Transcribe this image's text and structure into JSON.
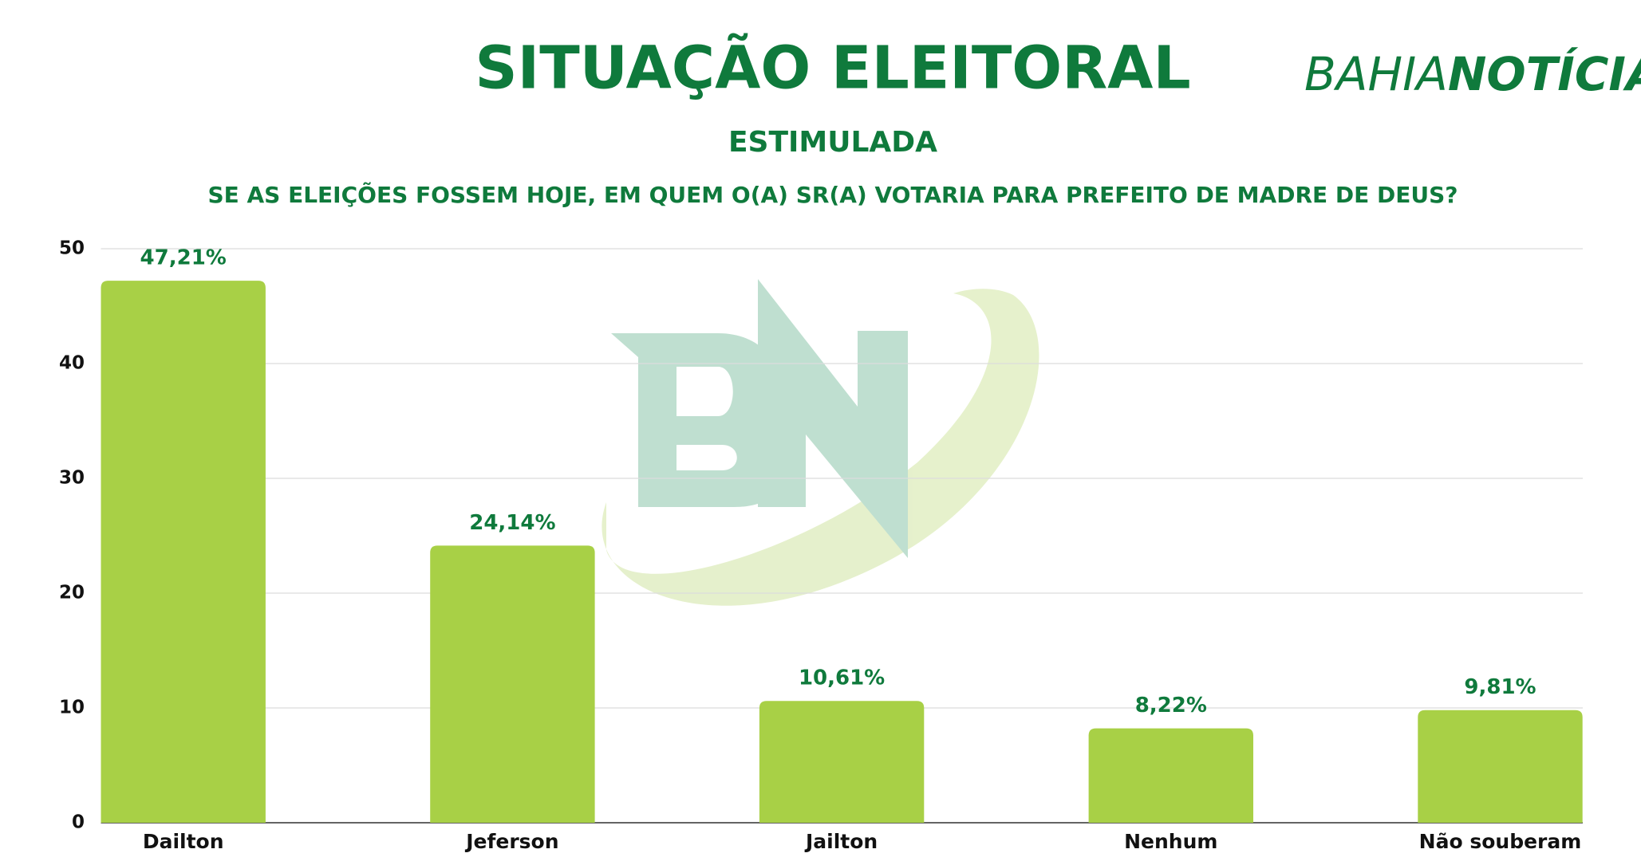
{
  "logo": {
    "light": "BAHIA",
    "bold": "NOTÍCIAS"
  },
  "chart_data": {
    "type": "bar",
    "title": "SITUAÇÃO ELEITORAL",
    "subtitle": "ESTIMULADA",
    "question": "SE AS ELEIÇÕES FOSSEM HOJE, EM QUEM O(A) SR(A) VOTARIA PARA PREFEITO DE MADRE DE DEUS?",
    "categories": [
      "Dailton",
      "Jeferson",
      "Jailton",
      "Nenhum",
      "Não souberam"
    ],
    "values": [
      47.21,
      24.14,
      10.61,
      8.22,
      9.81
    ],
    "value_labels": [
      "47,21%",
      "24,14%",
      "10,61%",
      "8,22%",
      "9,81%"
    ],
    "color": "#a8d046",
    "ylim": [
      0,
      50
    ],
    "yticks": [
      0,
      10,
      20,
      30,
      40,
      50
    ],
    "grid": true
  }
}
